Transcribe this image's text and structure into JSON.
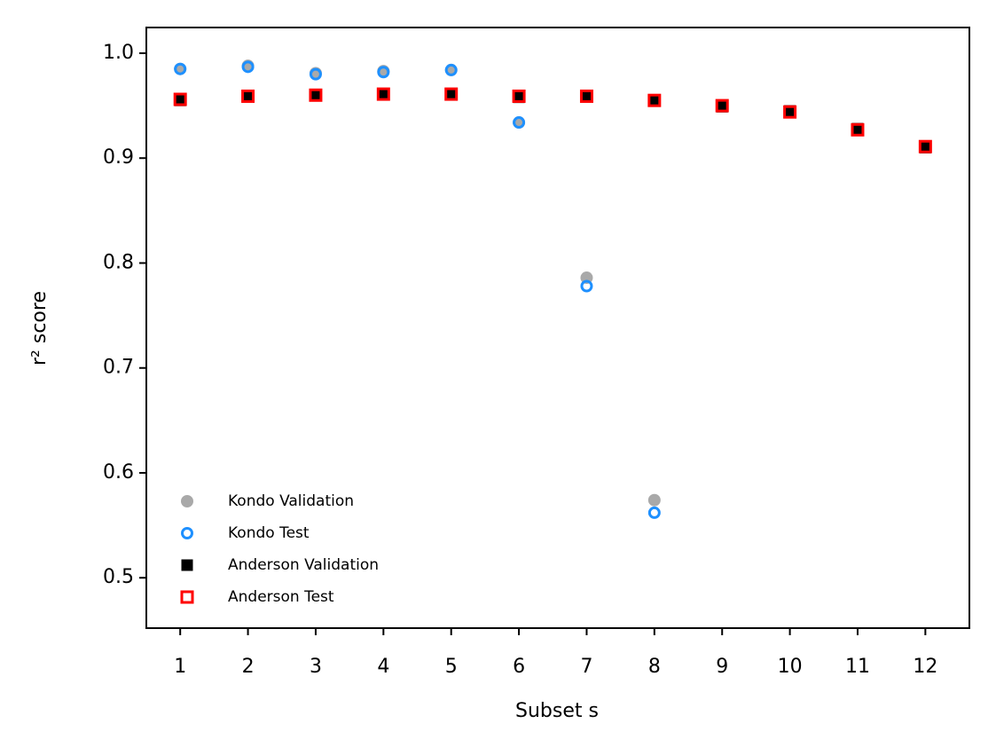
{
  "chart_data": {
    "type": "scatter",
    "xlabel": "Subset s",
    "ylabel": "r² score",
    "xlim": [
      0.5,
      12.65
    ],
    "ylim": [
      0.452,
      1.0245
    ],
    "xticks": [
      1,
      2,
      3,
      4,
      5,
      6,
      7,
      8,
      9,
      10,
      11,
      12
    ],
    "yticks": [
      {
        "value": 0.5,
        "label": "0.5"
      },
      {
        "value": 0.6,
        "label": "0.6"
      },
      {
        "value": 0.7,
        "label": "0.7"
      },
      {
        "value": 0.8,
        "label": "0.8"
      },
      {
        "value": 0.9,
        "label": "0.9"
      },
      {
        "value": 1.0,
        "label": "1.0"
      }
    ],
    "legend": "lower left",
    "series": [
      {
        "name": "Kondo Validation",
        "color": "#a9a9a9",
        "marker": "circle",
        "filled": true,
        "x": [
          1,
          2,
          3,
          4,
          5,
          6,
          7,
          8
        ],
        "values": [
          0.985,
          0.988,
          0.981,
          0.983,
          0.984,
          0.934,
          0.786,
          0.574
        ]
      },
      {
        "name": "Kondo Test",
        "color": "#1e90ff",
        "marker": "circle",
        "filled": false,
        "x": [
          1,
          2,
          3,
          4,
          5,
          6,
          7,
          8
        ],
        "values": [
          0.985,
          0.987,
          0.98,
          0.982,
          0.984,
          0.934,
          0.778,
          0.562
        ]
      },
      {
        "name": "Anderson Validation",
        "color": "#000000",
        "marker": "square",
        "filled": true,
        "x": [
          1,
          2,
          3,
          4,
          5,
          6,
          7,
          8,
          9,
          10,
          11,
          12
        ],
        "values": [
          0.955,
          0.959,
          0.96,
          0.961,
          0.961,
          0.958,
          0.959,
          0.955,
          0.949,
          0.945,
          0.928,
          0.91
        ]
      },
      {
        "name": "Anderson Test",
        "color": "#ff0000",
        "marker": "square",
        "filled": false,
        "x": [
          1,
          2,
          3,
          4,
          5,
          6,
          7,
          8,
          9,
          10,
          11,
          12
        ],
        "values": [
          0.956,
          0.959,
          0.96,
          0.961,
          0.961,
          0.959,
          0.959,
          0.955,
          0.95,
          0.944,
          0.927,
          0.911
        ]
      }
    ]
  }
}
